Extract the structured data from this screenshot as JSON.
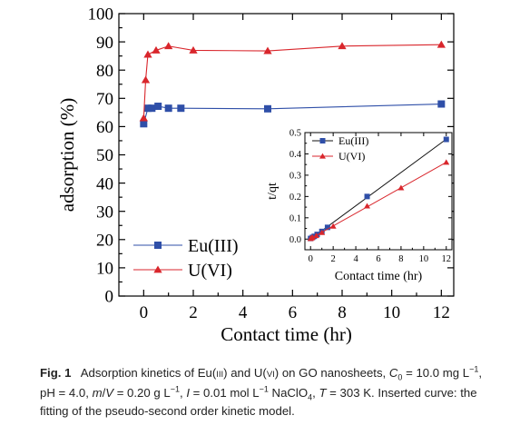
{
  "chart_data": [
    {
      "type": "line",
      "role": "main",
      "xlabel": "Contact time (hr)",
      "ylabel": "adsorption (%)",
      "xlim": [
        -1,
        12.5
      ],
      "ylim": [
        0,
        100
      ],
      "xticks": [
        0,
        2,
        4,
        6,
        8,
        10,
        12
      ],
      "yticks": [
        0,
        10,
        20,
        30,
        40,
        50,
        60,
        70,
        80,
        90,
        100
      ],
      "legend_position": "bottom-left",
      "series": [
        {
          "name": "Eu(III)",
          "color": "#2f4fa8",
          "marker": "square",
          "x": [
            0,
            0.17,
            0.33,
            0.58,
            1,
            1.5,
            5,
            12
          ],
          "y": [
            61,
            66.5,
            66.5,
            67.2,
            66.5,
            66.5,
            66.3,
            68
          ]
        },
        {
          "name": "U(VI)",
          "color": "#d9262c",
          "marker": "triangle",
          "x": [
            0,
            0.08,
            0.17,
            0.5,
            1,
            2,
            5,
            8,
            12
          ],
          "y": [
            63,
            76.5,
            85.5,
            87,
            88.5,
            87,
            86.8,
            88.5,
            89
          ]
        }
      ]
    },
    {
      "type": "line",
      "role": "inset",
      "xlabel": "Contact time (hr)",
      "ylabel": "t/qt",
      "xlim": [
        -0.5,
        12.5
      ],
      "ylim": [
        -0.05,
        0.5
      ],
      "xticks": [
        0,
        2,
        4,
        6,
        8,
        10,
        12
      ],
      "yticks": [
        0.0,
        0.1,
        0.2,
        0.3,
        0.4,
        0.5
      ],
      "legend_position": "top-left",
      "series": [
        {
          "name": "Eu(III)",
          "color": "#2f4fa8",
          "marker": "square",
          "x": [
            0,
            0.17,
            0.33,
            0.58,
            1,
            1.5,
            5,
            12
          ],
          "y": [
            0.003,
            0.008,
            0.013,
            0.022,
            0.036,
            0.055,
            0.2,
            0.468
          ]
        },
        {
          "name": "U(VI)",
          "color": "#d9262c",
          "marker": "triangle",
          "x": [
            0,
            0.08,
            0.17,
            0.5,
            1,
            2,
            5,
            8,
            12
          ],
          "y": [
            0.002,
            0.005,
            0.008,
            0.016,
            0.03,
            0.06,
            0.155,
            0.24,
            0.36
          ]
        }
      ]
    }
  ],
  "caption": {
    "label": "Fig. 1",
    "text": "Adsorption kinetics of Eu(III) and U(VI) on GO nanosheets, C0 = 10.0 mg L−1, pH = 4.0, m/V = 0.20 g L−1, I = 0.01 mol L−1 NaClO4, T = 303 K. Inserted curve: the fitting of the pseudo-second order kinetic model."
  }
}
